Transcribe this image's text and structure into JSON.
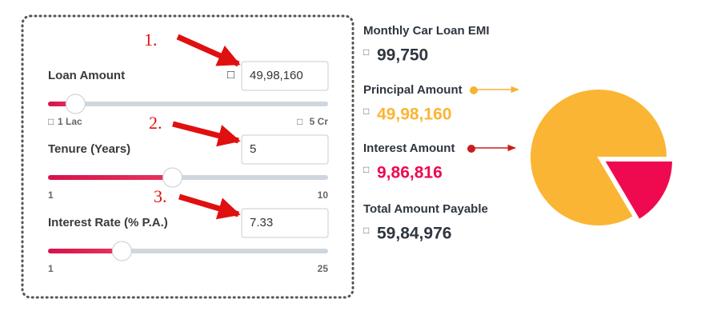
{
  "annotations": [
    "1.",
    "2.",
    "3."
  ],
  "currency": "□",
  "fields": [
    {
      "label": "Loan Amount",
      "value": {
        "value": 4998160,
        "label": "49,98,160"
      },
      "min": {
        "value": 100000,
        "label": "1 Lac"
      },
      "max": {
        "value": 50000000,
        "label": "5 Cr"
      }
    },
    {
      "label": "Tenure (Years)",
      "value": 5,
      "min": 1,
      "max": 10
    },
    {
      "label": "Interest Rate (% P.A.)",
      "value": 7.33,
      "min": 1,
      "max": 25
    }
  ],
  "results": {
    "emi": {
      "label": "Monthly Car Loan EMI",
      "amount": {
        "value": 99750,
        "label": "99,750"
      }
    },
    "principal": {
      "label": "Principal Amount",
      "amount": {
        "value": 4998160,
        "label": "49,98,160"
      },
      "color": "#fbb534"
    },
    "interest": {
      "label": "Interest Amount",
      "amount": {
        "value": 986816,
        "label": "9,86,816"
      },
      "color": "#ef0a50"
    },
    "total": {
      "label": "Total Amount Payable",
      "amount": {
        "value": 5984976,
        "label": "59,84,976"
      }
    }
  }
}
